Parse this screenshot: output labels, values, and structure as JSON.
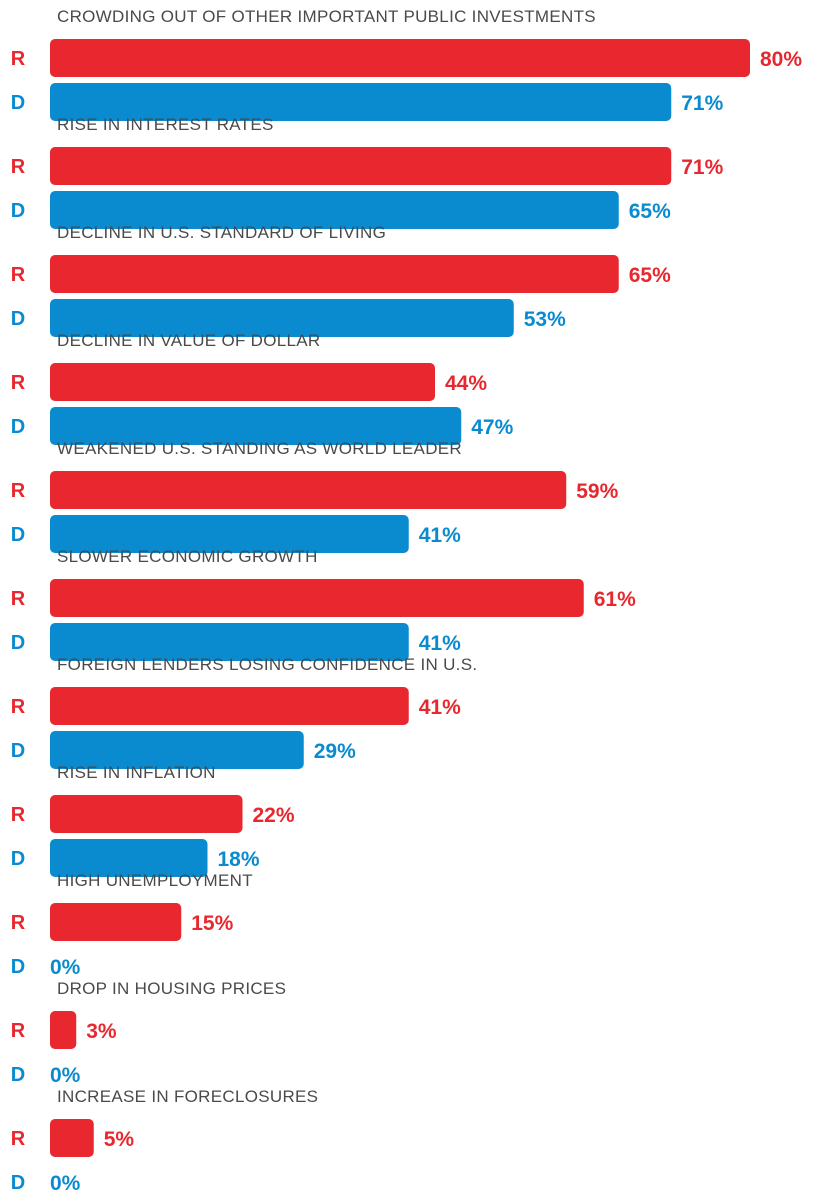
{
  "chart_data": {
    "type": "bar",
    "orientation": "horizontal",
    "categories": [
      "CROWDING OUT OF OTHER IMPORTANT PUBLIC INVESTMENTS",
      "RISE IN INTEREST RATES",
      "DECLINE IN U.S. STANDARD OF LIVING",
      "DECLINE IN VALUE OF DOLLAR",
      "WEAKENED U.S. STANDING AS WORLD LEADER",
      "SLOWER ECONOMIC GROWTH",
      "FOREIGN LENDERS LOSING CONFIDENCE IN U.S.",
      "RISE IN INFLATION",
      "HIGH UNEMPLOYMENT",
      "DROP IN HOUSING PRICES",
      "INCREASE IN FORECLOSURES"
    ],
    "series": [
      {
        "name": "R",
        "color": "#e8282e",
        "values": [
          80,
          71,
          65,
          44,
          59,
          61,
          41,
          22,
          15,
          3,
          5
        ],
        "labels": [
          "80%",
          "71%",
          "65%",
          "44%",
          "59%",
          "61%",
          "41%",
          "22%",
          "15%",
          "3%",
          "5%"
        ]
      },
      {
        "name": "D",
        "color": "#0a8bd0",
        "values": [
          71,
          65,
          53,
          47,
          41,
          41,
          29,
          18,
          0,
          0,
          0
        ],
        "labels": [
          "71%",
          "65%",
          "53%",
          "47%",
          "41%",
          "41%",
          "29%",
          "18%",
          "0%",
          "0%",
          "0%"
        ]
      }
    ],
    "xlim": [
      0,
      80
    ],
    "unit": "%",
    "legend": "none",
    "grid": false
  }
}
